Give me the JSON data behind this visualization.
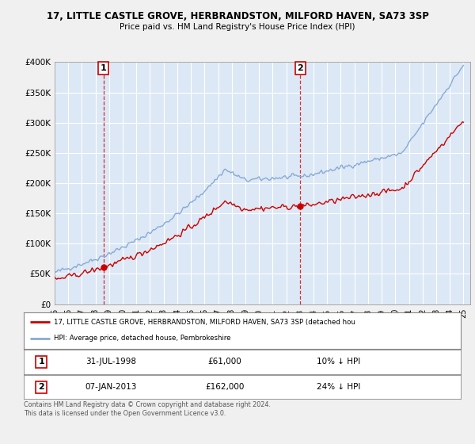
{
  "title": "17, LITTLE CASTLE GROVE, HERBRANDSTON, MILFORD HAVEN, SA73 3SP",
  "subtitle": "Price paid vs. HM Land Registry's House Price Index (HPI)",
  "property_label": "17, LITTLE CASTLE GROVE, HERBRANDSTON, MILFORD HAVEN, SA73 3SP (detached hou",
  "hpi_label": "HPI: Average price, detached house, Pembrokeshire",
  "copyright": "Contains HM Land Registry data © Crown copyright and database right 2024.\nThis data is licensed under the Open Government Licence v3.0.",
  "point1_date": "31-JUL-1998",
  "point1_price": 61000,
  "point1_hpi_diff": "10% ↓ HPI",
  "point2_date": "07-JAN-2013",
  "point2_price": 162000,
  "point2_hpi_diff": "24% ↓ HPI",
  "point1_year": 1998.58,
  "point2_year": 2013.03,
  "property_color": "#cc0000",
  "hpi_color": "#88aad4",
  "plot_bg_color": "#dce8f5",
  "background_color": "#f0f0f0",
  "ylim": [
    0,
    400000
  ],
  "yticks": [
    0,
    50000,
    100000,
    150000,
    200000,
    250000,
    300000,
    350000,
    400000
  ],
  "xlim_start": 1995,
  "xlim_end": 2025.5
}
